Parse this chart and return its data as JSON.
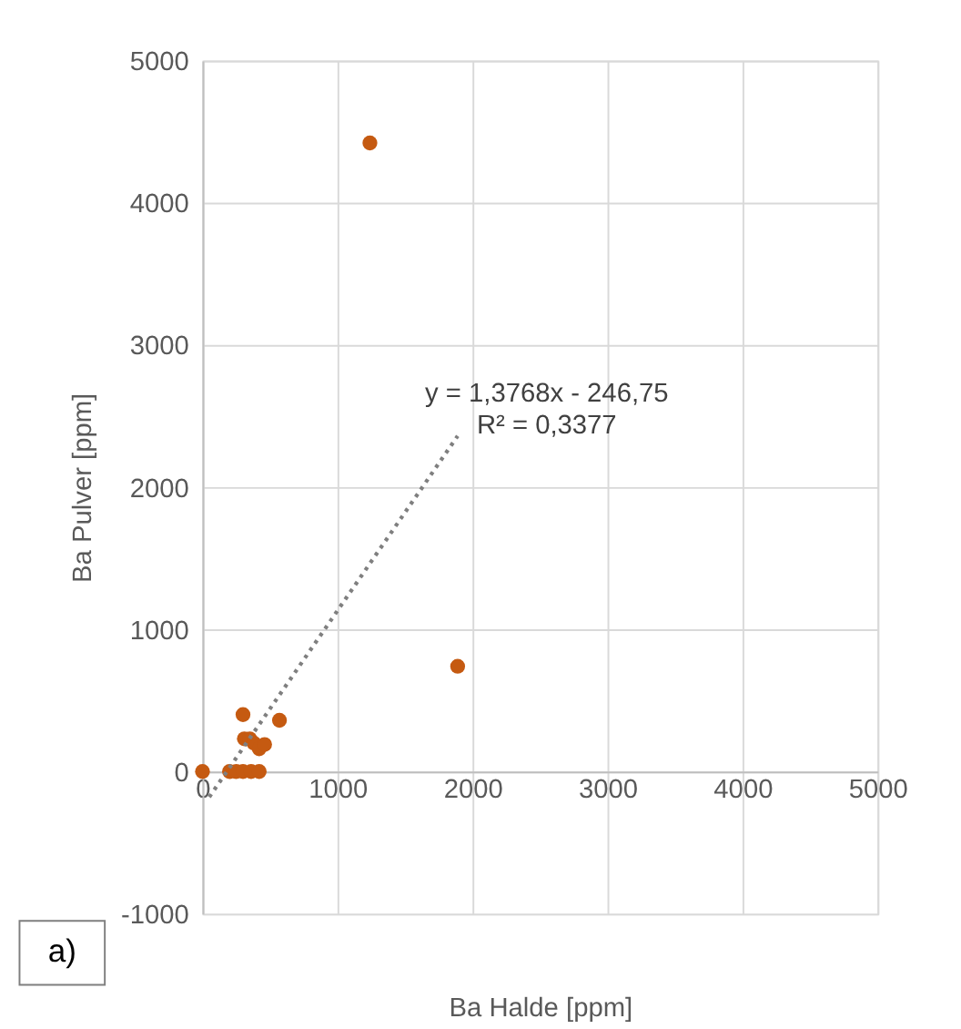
{
  "chart_data": {
    "type": "scatter",
    "xlabel": "Ba Halde [ppm]",
    "ylabel": "Ba Pulver [ppm]",
    "xlim": [
      0,
      5000
    ],
    "ylim": [
      -1000,
      5000
    ],
    "xticks": [
      0,
      1000,
      2000,
      3000,
      4000,
      5000
    ],
    "yticks": [
      -1000,
      0,
      1000,
      2000,
      3000,
      4000,
      5000
    ],
    "grid": true,
    "series": [
      {
        "color": "#c55a11",
        "marker": "circle",
        "x": [
          1240,
          1890,
          0,
          200,
          250,
          300,
          360,
          420,
          300,
          570,
          310,
          350,
          380,
          420,
          460
        ],
        "values": [
          4420,
          740,
          0,
          0,
          0,
          0,
          0,
          0,
          400,
          360,
          230,
          230,
          200,
          160,
          190
        ]
      },
      {
        "type": "line",
        "color": "#7f7f7f",
        "line_style": "dotted",
        "x": [
          50,
          1890
        ],
        "values": [
          -180,
          2360
        ]
      }
    ],
    "annotations": [
      "y = 1,3768x - 246,75\nR² = 0,3377",
      "a)"
    ]
  }
}
